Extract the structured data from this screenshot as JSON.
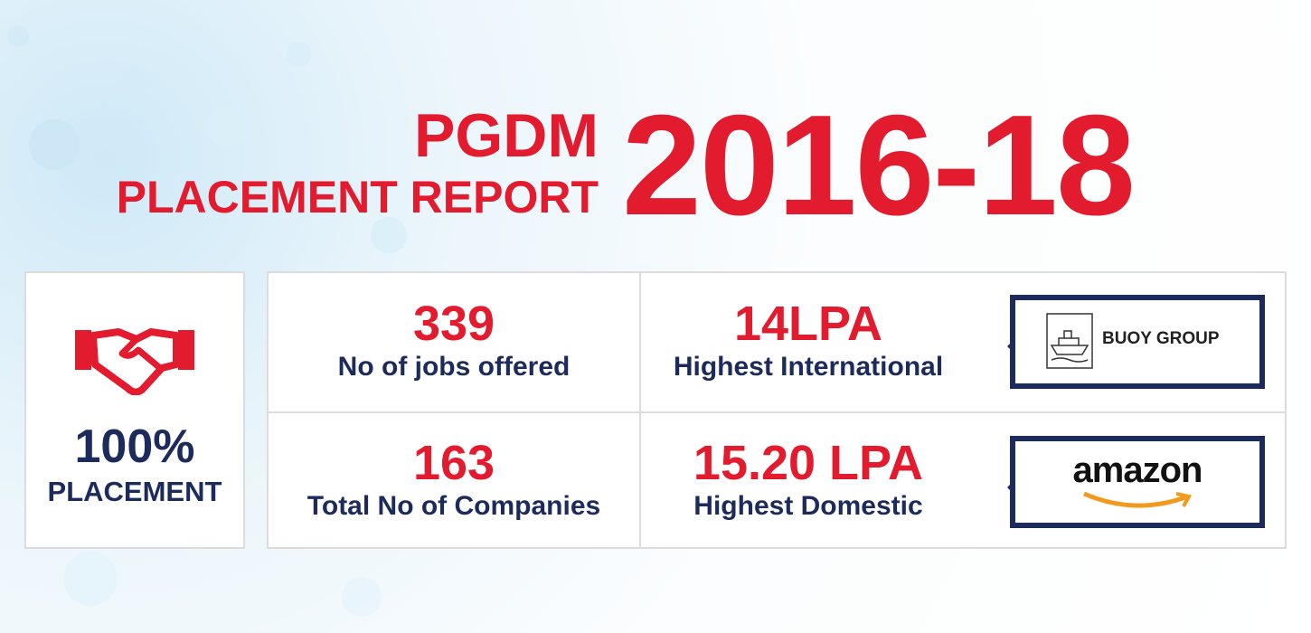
{
  "header": {
    "line1": "PGDM",
    "line2": "PLACEMENT REPORT",
    "year": "2016-18"
  },
  "summary": {
    "value": "100%",
    "label": "PLACEMENT"
  },
  "stats": [
    {
      "value": "339",
      "label": "No of jobs offered"
    },
    {
      "value": "14LPA",
      "label": "Highest International",
      "company": "BUOY GROUP"
    },
    {
      "value": "163",
      "label": "Total No of Companies"
    },
    {
      "value": "15.20 LPA",
      "label": "Highest Domestic",
      "company": "amazon"
    }
  ]
}
